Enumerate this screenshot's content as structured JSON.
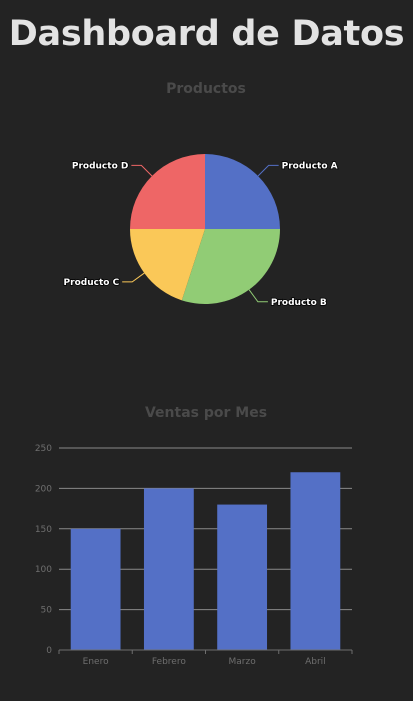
{
  "page": {
    "title": "Dashboard de Datos",
    "background": "#232323"
  },
  "chart_data": [
    {
      "type": "pie",
      "title": "Productos",
      "categories": [
        "Producto A",
        "Producto B",
        "Producto C",
        "Producto D"
      ],
      "values": [
        25,
        30,
        20,
        25
      ],
      "colors": [
        "#5470c6",
        "#91cc75",
        "#fac858",
        "#ee6666"
      ],
      "legend": "none"
    },
    {
      "type": "bar",
      "title": "Ventas por Mes",
      "categories": [
        "Enero",
        "Febrero",
        "Marzo",
        "Abril"
      ],
      "values": [
        150,
        200,
        180,
        220
      ],
      "ylim": [
        0,
        250
      ],
      "yticks": [
        0,
        50,
        100,
        150,
        200,
        250
      ],
      "grid": true,
      "bar_color": "#5470c6",
      "xlabel": "",
      "ylabel": ""
    }
  ],
  "colors": {
    "title_text": "#e3e3e3",
    "chart_title": "#4a4a4a",
    "label_text": "#ffffff",
    "axis_text": "#6e6e6e",
    "grid": "#8a8a8a"
  }
}
